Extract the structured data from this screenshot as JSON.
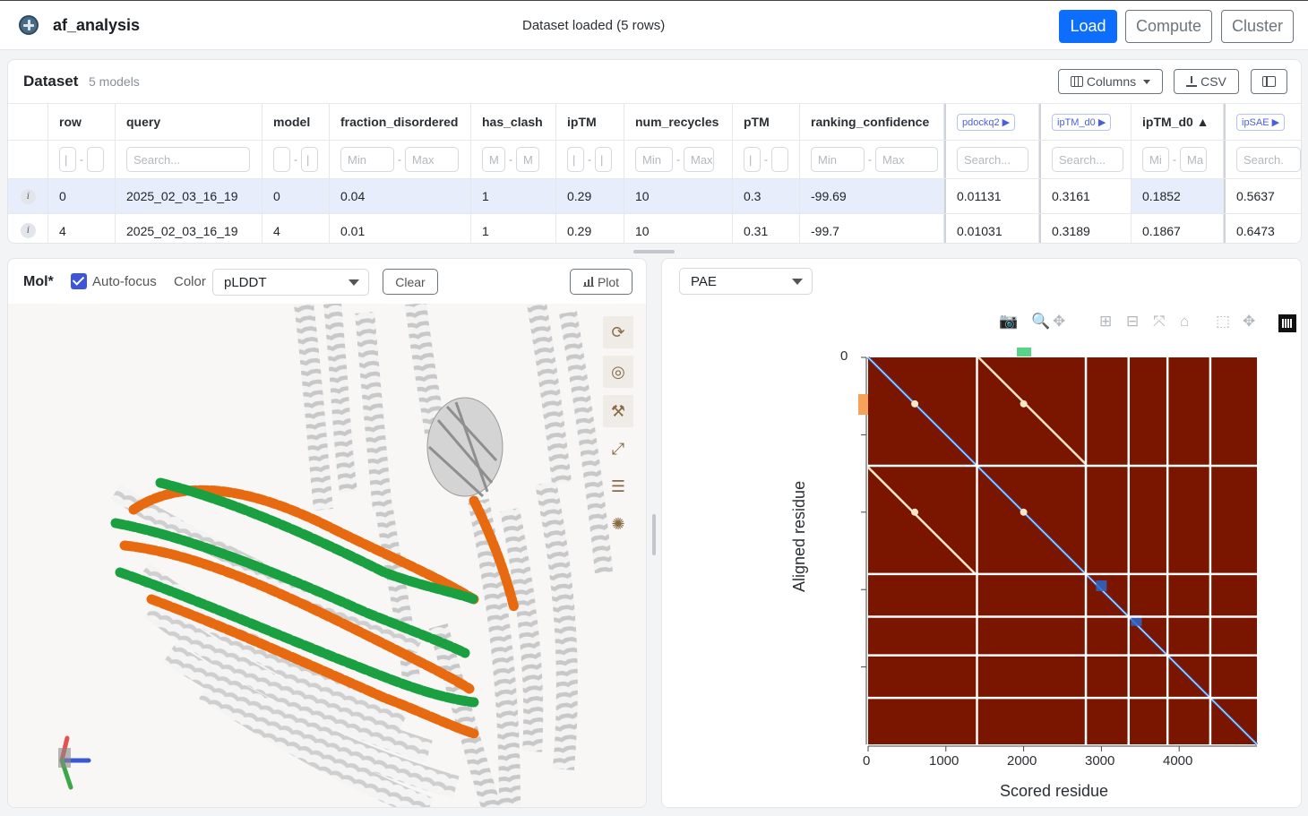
{
  "header": {
    "app_title": "af_analysis",
    "status": "Dataset loaded (5 rows)",
    "buttons": {
      "load": "Load",
      "compute": "Compute",
      "cluster": "Cluster"
    }
  },
  "dataset": {
    "title": "Dataset",
    "count": "5 models",
    "buttons": {
      "columns": "Columns",
      "csv": "CSV"
    },
    "columns": [
      "row",
      "query",
      "model",
      "fraction_disordered",
      "has_clash",
      "ipTM",
      "num_recycles",
      "pTM",
      "ranking_confidence",
      "pdockq2 ▶",
      "ipTM_d0 ▶",
      "ipTM_d0 ▲",
      "ipSAE ▶"
    ],
    "filters": {
      "min": "Min",
      "max": "Max",
      "search": "Search...",
      "m": "M",
      "mi": "Mi",
      "ma": "Ma",
      "search_short": "Search."
    },
    "rows": [
      [
        "0",
        "2025_02_03_16_19",
        "0",
        "0.04",
        "1",
        "0.29",
        "10",
        "0.3",
        "-99.69",
        "0.01131",
        "0.3161",
        "0.1852",
        "0.5637"
      ],
      [
        "4",
        "2025_02_03_16_19",
        "4",
        "0.01",
        "1",
        "0.29",
        "10",
        "0.31",
        "-99.7",
        "0.01031",
        "0.3189",
        "0.1867",
        "0.6473"
      ]
    ],
    "info_icon_label": "i"
  },
  "mol": {
    "title": "Mol*",
    "autofocus_label": "Auto-focus",
    "color_label": "Color",
    "color_value": "pLDDT",
    "clear_label": "Clear",
    "plot_label": "Plot",
    "chain_colors": {
      "chain_a": "#e86a10",
      "chain_b": "#1aa040",
      "other": "#d6d6d6"
    }
  },
  "pae": {
    "select_value": "PAE",
    "chart_data": {
      "type": "heatmap",
      "xlabel": "Scored residue",
      "ylabel": "Aligned residue",
      "x_ticks": [
        "0",
        "1000",
        "2000",
        "3000",
        "4000"
      ],
      "y_ticks": [
        "0"
      ],
      "xlim": [
        0,
        5000
      ],
      "ylim": [
        5000,
        0
      ],
      "chain_boundaries": [
        1400,
        2800,
        3350,
        3850,
        4400
      ],
      "background_color": "#7a1500",
      "diagonal_color": "#2c66c8",
      "highlight_color": "#f5e6c8",
      "top_marker_color": "#5ad38a",
      "side_marker_color": "#f6a25a"
    }
  }
}
